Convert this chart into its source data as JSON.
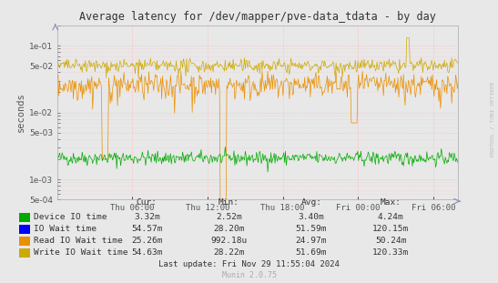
{
  "title": "Average latency for /dev/mapper/pve-data_tdata - by day",
  "ylabel": "seconds",
  "background_color": "#e8e8e8",
  "plot_bg_color": "#e8e8e8",
  "grid_color": "#ffaaaa",
  "x_tick_labels": [
    "Thu 06:00",
    "Thu 12:00",
    "Thu 18:00",
    "Fri 00:00",
    "Fri 06:00"
  ],
  "x_tick_positions": [
    0.1875,
    0.375,
    0.5625,
    0.75,
    0.9375
  ],
  "ylim_min": 0.0005,
  "ylim_max": 0.2,
  "yticks": [
    0.0005,
    0.001,
    0.005,
    0.01,
    0.05,
    0.1
  ],
  "legend_items": [
    {
      "label": "Device IO time",
      "color": "#00aa00"
    },
    {
      "label": "IO Wait time",
      "color": "#0000ff"
    },
    {
      "label": "Read IO Wait time",
      "color": "#ea8f00"
    },
    {
      "label": "Write IO Wait time",
      "color": "#ccaa00"
    }
  ],
  "table_headers": [
    "Cur:",
    "Min:",
    "Avg:",
    "Max:"
  ],
  "table_rows": [
    [
      "Device IO time",
      "3.32m",
      "2.52m",
      "3.40m",
      "4.24m"
    ],
    [
      "IO Wait time",
      "54.57m",
      "28.20m",
      "51.59m",
      "120.15m"
    ],
    [
      "Read IO Wait time",
      "25.26m",
      "992.18u",
      "24.97m",
      "50.24m"
    ],
    [
      "Write IO Wait time",
      "54.63m",
      "28.22m",
      "51.69m",
      "120.33m"
    ]
  ],
  "last_update": "Last update: Fri Nov 29 11:55:04 2024",
  "munin_version": "Munin 2.0.75",
  "watermark": "RRDTOOL / TOBI OETIKER",
  "n_points": 500,
  "green_base": 0.0021,
  "green_noise": 0.00025,
  "orange_base": 0.026,
  "orange_noise": 0.006,
  "yellow_base": 0.05,
  "yellow_noise": 0.006,
  "orange_spikes": [
    [
      0.12,
      0.002
    ],
    [
      0.415,
      0.0003
    ],
    [
      0.74,
      0.007
    ]
  ],
  "yellow_spike_up": [
    0.875,
    0.13
  ]
}
